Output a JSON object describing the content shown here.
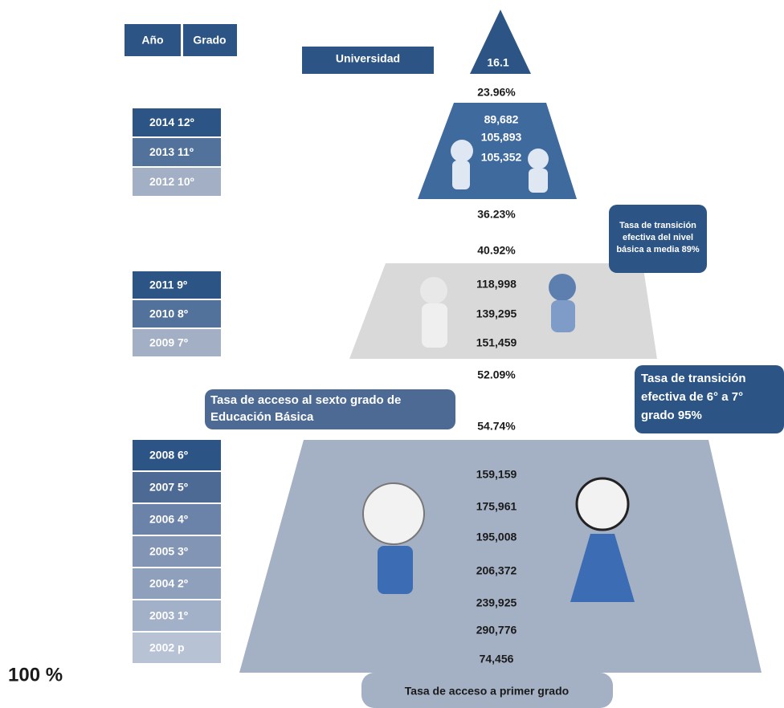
{
  "header": {
    "year": "Año",
    "grade": "Grado"
  },
  "university": {
    "label": "Universidad",
    "value": "16.1"
  },
  "rates": [
    "23.96%",
    "36.23%",
    "40.92%",
    "52.09%",
    "54.74%",
    "100 %"
  ],
  "levels": [
    {
      "grades": [
        "2014 12º",
        "2013 11º",
        "2012 10º"
      ],
      "values": [
        "89,682",
        "105,893",
        "105,352"
      ]
    },
    {
      "grades": [
        "2011 9º",
        "2010 8º",
        "2009 7º"
      ],
      "values": [
        "118,998",
        "139,295",
        "151,459"
      ]
    },
    {
      "grades": [
        "2008 6º",
        "2007 5º",
        "2006 4º",
        "2005 3º",
        "2004 2º",
        "2003 1º",
        "2002 p"
      ],
      "values": [
        "159,159",
        "175,961",
        "195,008",
        "206,372",
        "239,925",
        "290,776",
        "74,456"
      ]
    }
  ],
  "callouts": {
    "basic_to_media": [
      "Tasa de transición",
      "efectiva del nivel",
      "básica a media 89%"
    ],
    "sixth_to_seventh": [
      "Tasa de transición",
      "efectiva  de  6° a 7°",
      "grado 95%"
    ],
    "sixth_access": [
      "Tasa de acceso al sexto grado de",
      "Educación Básica"
    ],
    "first_access": "Tasa de acceso a primer grado"
  }
}
